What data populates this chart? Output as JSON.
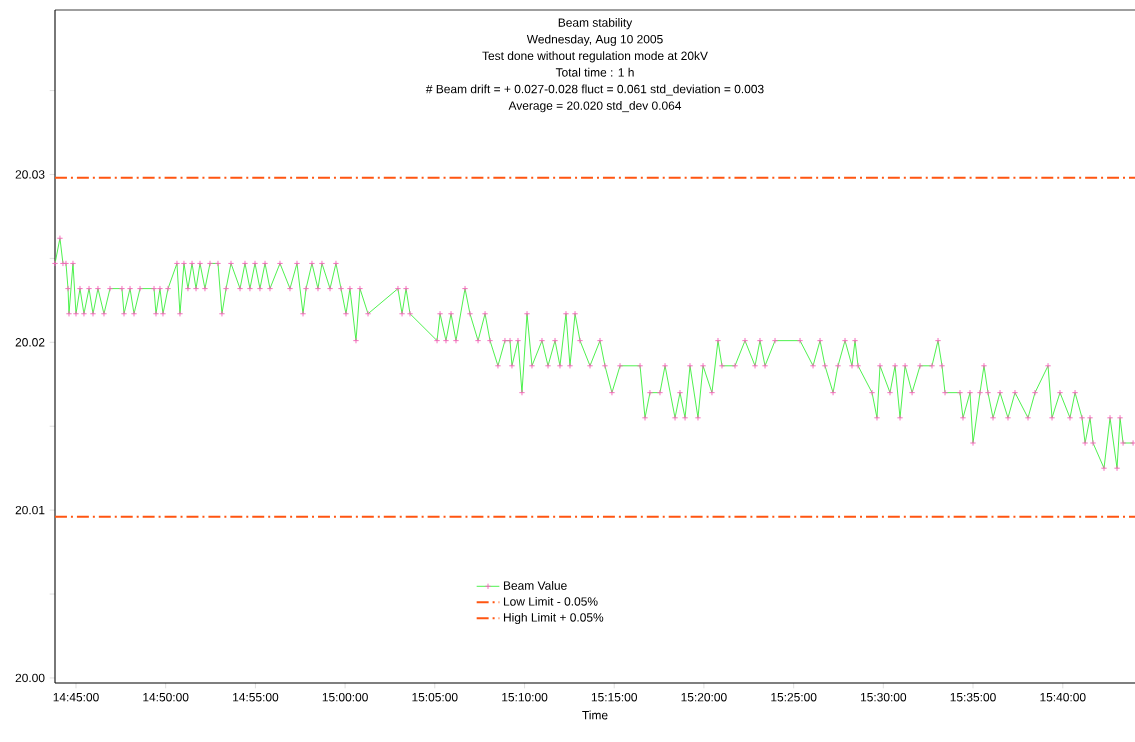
{
  "chart_data": {
    "type": "line",
    "title": "Beam stability",
    "subtitle": "Wednesday, Aug 10 2005",
    "annotations": [
      "Test done without regulation mode at  20kV",
      "Total time :  1 h",
      "#  Beam drift = + 0.027-0.028 fluct = 0.061 std_deviation = 0.003",
      "Average = 20.020 std_dev 0.064"
    ],
    "xlabel": "Time",
    "xlim": [
      14.7305,
      15.7338
    ],
    "xticks": [
      {
        "value": 14.75,
        "label": "14:45:00"
      },
      {
        "value": 14.8333,
        "label": "14:50:00"
      },
      {
        "value": 14.9167,
        "label": "14:55:00"
      },
      {
        "value": 15.0,
        "label": "15:00:00"
      },
      {
        "value": 15.0833,
        "label": "15:05:00"
      },
      {
        "value": 15.1667,
        "label": "15:10:00"
      },
      {
        "value": 15.25,
        "label": "15:15:00"
      },
      {
        "value": 15.3333,
        "label": "15:20:00"
      },
      {
        "value": 15.4167,
        "label": "15:25:00"
      },
      {
        "value": 15.5,
        "label": "15:30:00"
      },
      {
        "value": 15.5833,
        "label": "15:35:00"
      },
      {
        "value": 15.6667,
        "label": "15:40:00"
      }
    ],
    "ylim": [
      19.9997,
      20.0398
    ],
    "yticks": [
      {
        "value": 20.0,
        "label": "20.00"
      },
      {
        "value": 20.005,
        "label": null
      },
      {
        "value": 20.01,
        "label": "20.01"
      },
      {
        "value": 20.015,
        "label": null
      },
      {
        "value": 20.02,
        "label": "20.02"
      },
      {
        "value": 20.025,
        "label": null
      },
      {
        "value": 20.03,
        "label": "20.03"
      },
      {
        "value": 20.035,
        "label": null
      }
    ],
    "marker": "cross",
    "line_style": "solid",
    "legend": "bottom",
    "series": [
      {
        "name": "Beam Value",
        "color": "#22ee22",
        "x": [
          14.7305,
          14.7351,
          14.7379,
          14.7407,
          14.7426,
          14.7435,
          14.7472,
          14.75,
          14.7537,
          14.7574,
          14.7621,
          14.7658,
          14.7704,
          14.776,
          14.7816,
          14.7927,
          14.7946,
          14.8002,
          14.8039,
          14.8095,
          14.8225,
          14.8243,
          14.828,
          14.8308,
          14.8355,
          14.8438,
          14.8466,
          14.8503,
          14.854,
          14.8578,
          14.8615,
          14.8652,
          14.8698,
          14.8745,
          14.8819,
          14.8856,
          14.8894,
          14.894,
          14.9024,
          14.907,
          14.9116,
          14.9163,
          14.9209,
          14.9256,
          14.9302,
          14.9395,
          14.9488,
          14.9553,
          14.9609,
          14.9637,
          14.9692,
          14.9748,
          14.9785,
          14.986,
          14.9915,
          14.9962,
          15.0008,
          15.0045,
          15.0101,
          15.0138,
          15.0213,
          15.0491,
          15.0529,
          15.0566,
          15.0603,
          15.0854,
          15.0882,
          15.0937,
          15.0984,
          15.103,
          15.1114,
          15.116,
          15.1235,
          15.13,
          15.1346,
          15.142,
          15.1485,
          15.1532,
          15.155,
          15.1606,
          15.1643,
          15.169,
          15.1736,
          15.1829,
          15.1885,
          15.195,
          15.1996,
          15.2052,
          15.2089,
          15.2136,
          15.2182,
          15.2275,
          15.2368,
          15.2414,
          15.2479,
          15.2554,
          15.274,
          15.2786,
          15.2832,
          15.2925,
          15.2972,
          15.3065,
          15.3111,
          15.3158,
          15.3204,
          15.3278,
          15.3325,
          15.3408,
          15.3464,
          15.3501,
          15.3622,
          15.3715,
          15.3808,
          15.3854,
          15.3901,
          15.3994,
          15.4226,
          15.4347,
          15.4412,
          15.4458,
          15.4533,
          15.4579,
          15.4644,
          15.4709,
          15.4737,
          15.4765,
          15.4895,
          15.4941,
          15.4969,
          15.5062,
          15.5109,
          15.5155,
          15.5202,
          15.5267,
          15.5341,
          15.5452,
          15.5508,
          15.5545,
          15.5573,
          15.5712,
          15.574,
          15.5805,
          15.5833,
          15.5898,
          15.5935,
          15.5972,
          15.6019,
          15.6084,
          15.6158,
          15.6223,
          15.6344,
          15.6409,
          15.653,
          15.6567,
          15.6641,
          15.6734,
          15.6781,
          15.6846,
          15.6874,
          15.692,
          15.6948,
          15.705,
          15.7106,
          15.7171,
          15.7199,
          15.7227,
          15.732
        ],
        "values": [
          20.0247,
          20.0262,
          20.0247,
          20.0247,
          20.0232,
          20.0217,
          20.0247,
          20.0217,
          20.0232,
          20.0217,
          20.0232,
          20.0217,
          20.0232,
          20.0217,
          20.0232,
          20.0232,
          20.0217,
          20.0232,
          20.0217,
          20.0232,
          20.0232,
          20.0217,
          20.0232,
          20.0217,
          20.0232,
          20.0247,
          20.0217,
          20.0247,
          20.0232,
          20.0247,
          20.0232,
          20.0247,
          20.0232,
          20.0247,
          20.0247,
          20.0217,
          20.0232,
          20.0247,
          20.0232,
          20.0247,
          20.0232,
          20.0247,
          20.0232,
          20.0247,
          20.0232,
          20.0247,
          20.0232,
          20.0247,
          20.0217,
          20.0232,
          20.0247,
          20.0232,
          20.0247,
          20.0232,
          20.0247,
          20.0232,
          20.0217,
          20.0232,
          20.0201,
          20.0232,
          20.0217,
          20.0232,
          20.0217,
          20.0232,
          20.0217,
          20.0201,
          20.0217,
          20.0201,
          20.0217,
          20.0201,
          20.0232,
          20.0217,
          20.0201,
          20.0217,
          20.0201,
          20.0186,
          20.0201,
          20.0201,
          20.0186,
          20.0201,
          20.017,
          20.0217,
          20.0186,
          20.0201,
          20.0186,
          20.0201,
          20.0186,
          20.0217,
          20.0186,
          20.0217,
          20.0201,
          20.0186,
          20.0201,
          20.0186,
          20.017,
          20.0186,
          20.0186,
          20.0155,
          20.017,
          20.017,
          20.0186,
          20.0155,
          20.017,
          20.0155,
          20.0186,
          20.0155,
          20.0186,
          20.017,
          20.0201,
          20.0186,
          20.0186,
          20.0201,
          20.0186,
          20.0201,
          20.0186,
          20.0201,
          20.0201,
          20.0186,
          20.0201,
          20.0186,
          20.017,
          20.0186,
          20.0201,
          20.0186,
          20.0201,
          20.0186,
          20.017,
          20.0155,
          20.0186,
          20.017,
          20.0186,
          20.0155,
          20.0186,
          20.017,
          20.0186,
          20.0186,
          20.0201,
          20.0186,
          20.017,
          20.017,
          20.0155,
          20.017,
          20.014,
          20.017,
          20.0186,
          20.017,
          20.0155,
          20.017,
          20.0155,
          20.017,
          20.0155,
          20.017,
          20.0186,
          20.0155,
          20.017,
          20.0155,
          20.017,
          20.0155,
          20.014,
          20.0155,
          20.014,
          20.0125,
          20.0155,
          20.0125,
          20.0155,
          20.014,
          20.014
        ]
      }
    ],
    "ref_lines": [
      {
        "axis": "y",
        "value": 20.0096,
        "label": "Low Limit - 0.05%",
        "color": "#ff5511",
        "line_style": "dashdot"
      },
      {
        "axis": "y",
        "value": 20.0298,
        "label": "High Limit + 0.05%",
        "color": "#ff5511",
        "line_style": "dashdot"
      }
    ]
  }
}
